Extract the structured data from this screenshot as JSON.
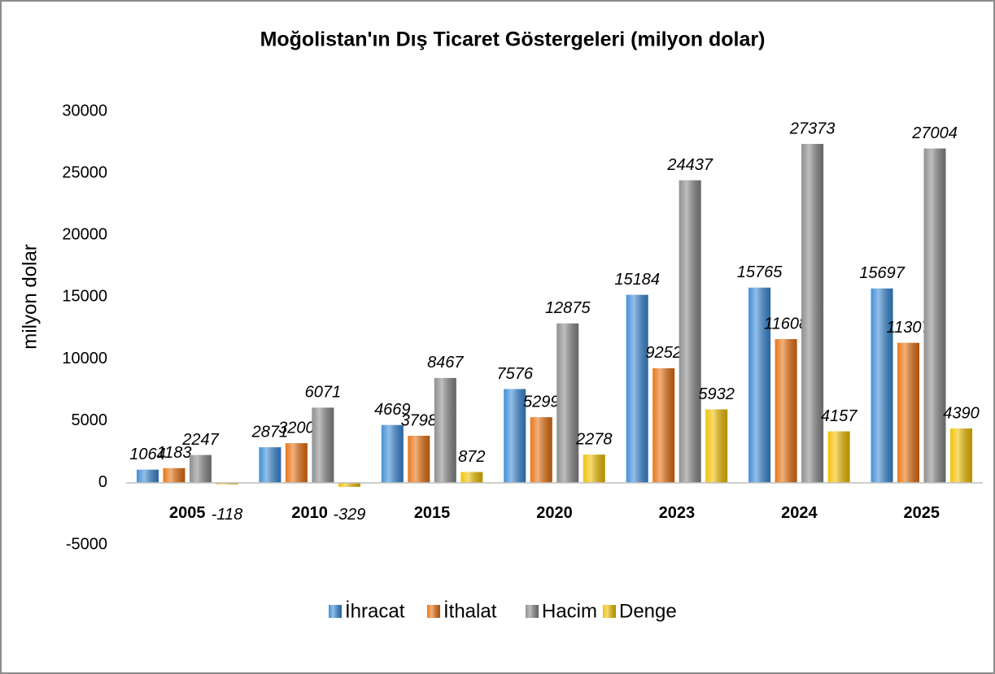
{
  "chart_data": {
    "type": "bar",
    "title": "Moğolistan'ın Dış Ticaret Göstergeleri (milyon dolar)",
    "y_label": "milyon dolar",
    "categories": [
      "2005",
      "2010",
      "2015",
      "2020",
      "2023",
      "2024",
      "2025"
    ],
    "series": [
      {
        "name": "İhracat",
        "color": "#3a8ad6",
        "values": [
          1064,
          2871,
          4669,
          7576,
          15184,
          15765,
          15697
        ]
      },
      {
        "name": "İthalat",
        "color": "#e8700f",
        "values": [
          1183,
          3200,
          3798,
          5299,
          9252,
          11608,
          11307
        ]
      },
      {
        "name": "Hacim",
        "color": "#8a8a8a",
        "values": [
          2247,
          6071,
          8467,
          12875,
          24437,
          27373,
          27004
        ]
      },
      {
        "name": "Denge",
        "color": "#f0c000",
        "values": [
          -118,
          -329,
          872,
          2278,
          5932,
          4157,
          4390
        ]
      }
    ],
    "ylim": [
      -5000,
      30000
    ],
    "yticks": [
      -5000,
      0,
      5000,
      10000,
      15000,
      20000,
      25000,
      30000
    ],
    "grid": false,
    "legend": "bottom"
  }
}
